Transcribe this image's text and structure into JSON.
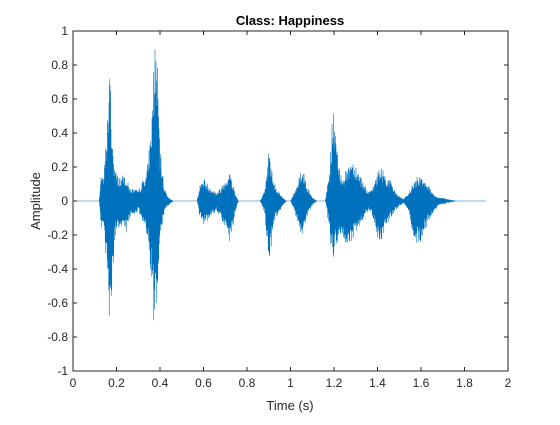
{
  "chart_data": {
    "type": "line",
    "title": "Class: Happiness",
    "xlabel": "Time (s)",
    "ylabel": "Amplitude",
    "xlim": [
      0,
      2
    ],
    "ylim": [
      -1,
      1
    ],
    "xticks": [
      0,
      0.2,
      0.4,
      0.6,
      0.8,
      1,
      1.2,
      1.4,
      1.6,
      1.8,
      2
    ],
    "yticks": [
      -1,
      -0.8,
      -0.6,
      -0.4,
      -0.2,
      0,
      0.2,
      0.4,
      0.6,
      0.8,
      1
    ],
    "xtick_labels": [
      "0",
      "0.2",
      "0.4",
      "0.6",
      "0.8",
      "1",
      "1.2",
      "1.4",
      "1.6",
      "1.8",
      "2"
    ],
    "ytick_labels": [
      "-1",
      "-0.8",
      "-0.6",
      "-0.4",
      "-0.2",
      "0",
      "0.2",
      "0.4",
      "0.6",
      "0.8",
      "1"
    ],
    "grid": false,
    "series_color": "#0072BD",
    "series": [
      {
        "x": [
          0.0,
          0.12,
          0.13,
          0.14,
          0.16,
          0.17,
          0.18,
          0.19,
          0.2,
          0.22,
          0.24,
          0.26,
          0.28,
          0.3,
          0.32,
          0.34,
          0.36,
          0.37,
          0.38,
          0.39,
          0.4,
          0.42,
          0.44,
          0.46,
          0.5,
          0.54,
          0.57,
          0.58,
          0.6,
          0.62,
          0.64,
          0.66,
          0.68,
          0.7,
          0.72,
          0.73,
          0.74,
          0.75,
          0.76,
          0.78,
          0.8,
          0.82,
          0.84,
          0.86,
          0.88,
          0.89,
          0.9,
          0.91,
          0.92,
          0.94,
          0.96,
          0.98,
          1.0,
          1.02,
          1.04,
          1.05,
          1.06,
          1.08,
          1.1,
          1.12,
          1.14,
          1.16,
          1.18,
          1.19,
          1.2,
          1.21,
          1.22,
          1.24,
          1.26,
          1.28,
          1.3,
          1.32,
          1.34,
          1.36,
          1.38,
          1.4,
          1.42,
          1.44,
          1.46,
          1.48,
          1.5,
          1.52,
          1.54,
          1.56,
          1.58,
          1.6,
          1.62,
          1.64,
          1.66,
          1.68,
          1.7,
          1.72,
          1.76,
          1.8,
          1.84,
          1.9
        ],
        "env_max": [
          0.0,
          0.0,
          0.18,
          0.12,
          0.55,
          0.8,
          0.4,
          0.22,
          0.16,
          0.14,
          0.16,
          0.08,
          0.07,
          0.06,
          0.12,
          0.18,
          0.45,
          0.8,
          1.0,
          0.75,
          0.3,
          0.08,
          0.02,
          0.0,
          0.0,
          0.0,
          0.0,
          0.08,
          0.14,
          0.1,
          0.07,
          0.05,
          0.08,
          0.13,
          0.18,
          0.12,
          0.08,
          0.03,
          0.0,
          0.0,
          0.0,
          0.0,
          0.0,
          0.0,
          0.06,
          0.15,
          0.33,
          0.22,
          0.14,
          0.07,
          0.03,
          0.0,
          0.0,
          0.06,
          0.15,
          0.2,
          0.17,
          0.08,
          0.02,
          0.0,
          0.0,
          0.0,
          0.2,
          0.45,
          0.55,
          0.4,
          0.2,
          0.15,
          0.19,
          0.26,
          0.22,
          0.16,
          0.1,
          0.05,
          0.08,
          0.18,
          0.2,
          0.15,
          0.12,
          0.06,
          0.03,
          0.01,
          0.04,
          0.1,
          0.14,
          0.16,
          0.13,
          0.08,
          0.04,
          0.02,
          0.02,
          0.01,
          0.0,
          0.0,
          0.0,
          0.0
        ],
        "env_min": [
          0.0,
          0.0,
          -0.18,
          -0.12,
          -0.55,
          -0.82,
          -0.45,
          -0.25,
          -0.17,
          -0.18,
          -0.2,
          -0.1,
          -0.08,
          -0.06,
          -0.14,
          -0.2,
          -0.5,
          -0.72,
          -0.7,
          -0.45,
          -0.2,
          -0.06,
          -0.02,
          0.0,
          0.0,
          0.0,
          0.0,
          -0.08,
          -0.14,
          -0.12,
          -0.08,
          -0.06,
          -0.1,
          -0.18,
          -0.24,
          -0.2,
          -0.12,
          -0.04,
          0.0,
          0.0,
          0.0,
          0.0,
          0.0,
          0.0,
          -0.07,
          -0.22,
          -0.37,
          -0.28,
          -0.15,
          -0.08,
          -0.03,
          0.0,
          0.0,
          -0.07,
          -0.16,
          -0.21,
          -0.18,
          -0.09,
          -0.02,
          0.0,
          0.0,
          0.0,
          -0.2,
          -0.34,
          -0.32,
          -0.28,
          -0.26,
          -0.22,
          -0.3,
          -0.24,
          -0.2,
          -0.14,
          -0.08,
          -0.06,
          -0.1,
          -0.24,
          -0.22,
          -0.14,
          -0.1,
          -0.06,
          -0.03,
          -0.01,
          -0.05,
          -0.2,
          -0.26,
          -0.24,
          -0.16,
          -0.12,
          -0.06,
          -0.02,
          -0.02,
          -0.01,
          0.0,
          0.0,
          0.0,
          0.0
        ]
      }
    ]
  }
}
